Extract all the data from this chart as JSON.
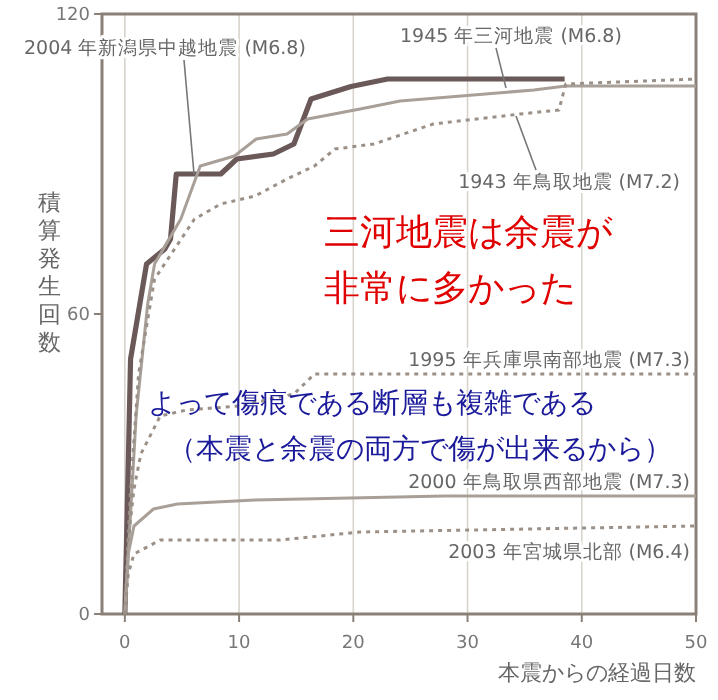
{
  "chart_data": {
    "type": "line",
    "ylabel": "積算発生回数",
    "xlabel": "本震からの経過日数",
    "xlim": [
      -2,
      50
    ],
    "xticks": [
      0,
      10,
      20,
      30,
      40,
      50
    ],
    "ylim": [
      0,
      120
    ],
    "yticks": [
      0,
      60,
      120
    ],
    "grid": "x",
    "series": [
      {
        "name": "2004 年新潟県中越地震 (M6.8)",
        "color": "#6b5858",
        "line_style": "solid",
        "x": [
          0,
          0.3,
          0.5,
          1.9,
          3.5,
          4,
          4.5,
          8.4,
          9.8,
          13,
          14.8,
          16.3,
          17.7,
          19.8,
          23,
          38.5
        ],
        "values": [
          0,
          30,
          51,
          70,
          73,
          75,
          88,
          88,
          91,
          92,
          94,
          103,
          104,
          105.5,
          107,
          107
        ]
      },
      {
        "name": "1945 年三河地震 (M6.8)",
        "color": "#a8a098",
        "line_style": "solid",
        "x": [
          0,
          0.5,
          1,
          2,
          2.6,
          4.9,
          6.6,
          9.6,
          11.5,
          14.2,
          16,
          18.3,
          20.6,
          24.1,
          35.8,
          38.6,
          50
        ],
        "values": [
          0,
          20,
          40,
          62,
          70,
          79,
          89.6,
          91.6,
          95,
          96,
          99,
          100,
          101,
          102.6,
          104.8,
          105.6,
          105.6
        ]
      },
      {
        "name": "1943 年鳥取地震 (M7.2)",
        "color": "#9a9088",
        "line_style": "dotted",
        "x": [
          0,
          0.5,
          1.2,
          2.6,
          6.1,
          8.4,
          11.4,
          14.2,
          16.6,
          18.4,
          21.8,
          27,
          34.6,
          38,
          38.6,
          50
        ],
        "values": [
          0,
          25,
          48,
          67,
          79,
          82,
          83.6,
          87,
          89.6,
          93,
          94,
          98,
          100,
          100.8,
          106,
          107
        ]
      },
      {
        "name": "1995 年兵庫県南部地震 (M7.3)",
        "color": "#9a9088",
        "line_style": "dotted",
        "x": [
          0,
          0.3,
          0.8,
          1.4,
          3.1,
          5.4,
          10,
          14.8,
          16.6,
          50
        ],
        "values": [
          0,
          15,
          25,
          32,
          39.6,
          40.8,
          41.6,
          44,
          48,
          48
        ]
      },
      {
        "name": "2000 年鳥取県西部地震 (M7.3)",
        "color": "#a8a098",
        "line_style": "solid",
        "x": [
          0,
          0.3,
          0.8,
          2.5,
          4.6,
          11.4,
          28,
          50
        ],
        "values": [
          0,
          12,
          17.6,
          21,
          22,
          22.8,
          23.6,
          23.6
        ]
      },
      {
        "name": "2003 年宮城県北部 (M6.4)",
        "color": "#9a9088",
        "line_style": "dotted",
        "x": [
          0,
          0.3,
          0.8,
          3.1,
          13.6,
          20.6,
          50
        ],
        "values": [
          0,
          8,
          12,
          14.8,
          14.8,
          16.4,
          17.6
        ]
      }
    ],
    "annotations": [
      "三河地震は余震が",
      "非常に多かった",
      "よって傷痕である断層も複雑である",
      "（本震と余震の両方で傷が出来るから）"
    ]
  }
}
